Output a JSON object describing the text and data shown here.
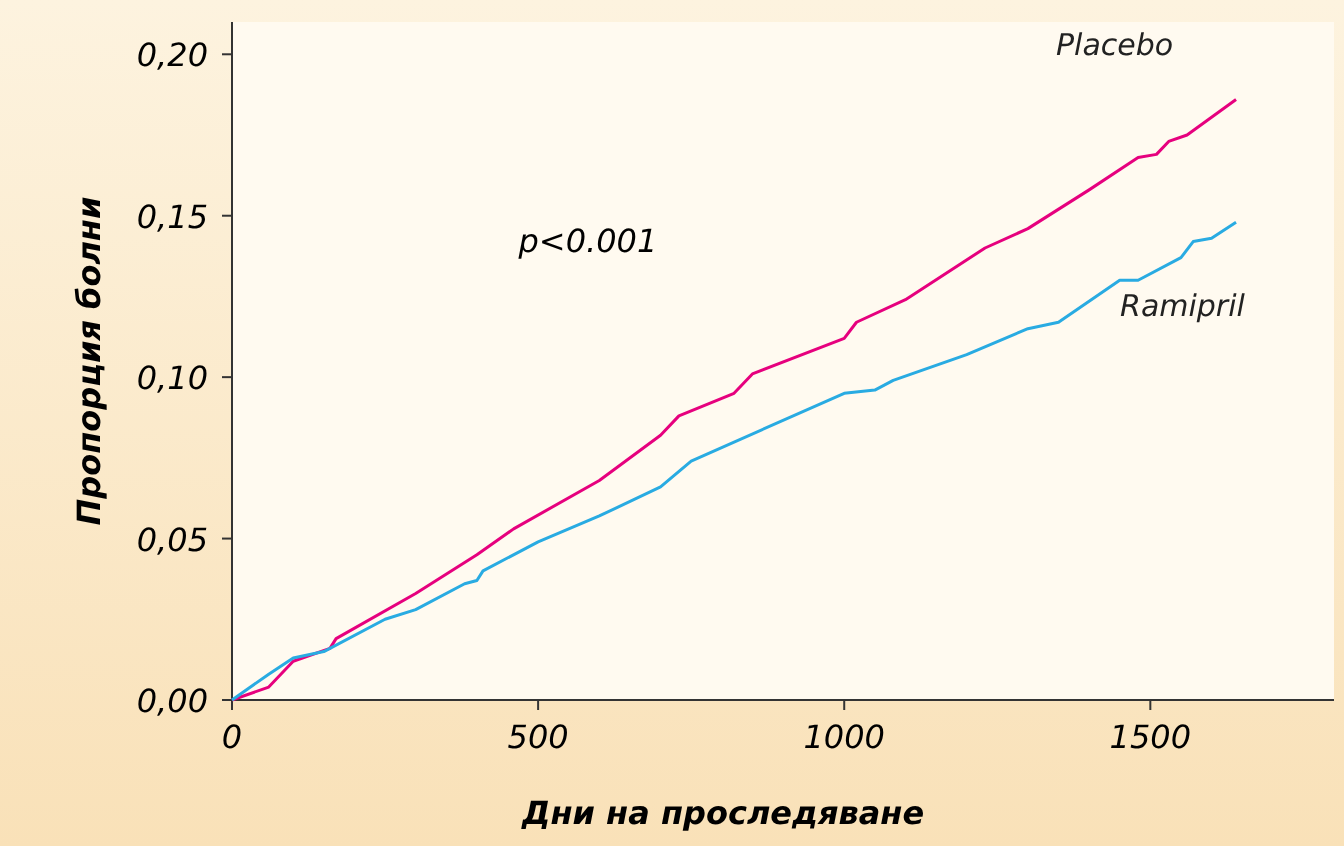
{
  "chart_data": {
    "type": "line",
    "xlabel": "Дни на проследяване",
    "ylabel": "Пропорция болни",
    "xlim": [
      0,
      1800
    ],
    "ylim": [
      0,
      0.21
    ],
    "xticks": [
      0,
      500,
      1000,
      1500
    ],
    "yticks": [
      {
        "value": 0,
        "label": "0,00"
      },
      {
        "value": 0.05,
        "label": "0,05"
      },
      {
        "value": 0.1,
        "label": "0,10"
      },
      {
        "value": 0.15,
        "label": "0,15"
      },
      {
        "value": 0.2,
        "label": "0,20"
      }
    ],
    "grid": false,
    "legend": false,
    "line_style": "solid",
    "marker": "none",
    "annotations": [
      "p<0.001"
    ],
    "series": [
      {
        "name": "Placebo",
        "color": "#e6007e",
        "x": [
          0,
          60,
          100,
          160,
          170,
          300,
          400,
          460,
          600,
          700,
          730,
          820,
          850,
          1000,
          1020,
          1100,
          1230,
          1300,
          1400,
          1480,
          1510,
          1530,
          1560,
          1640
        ],
        "values": [
          0,
          0.004,
          0.012,
          0.016,
          0.019,
          0.033,
          0.045,
          0.053,
          0.068,
          0.082,
          0.088,
          0.095,
          0.101,
          0.112,
          0.117,
          0.124,
          0.14,
          0.146,
          0.158,
          0.168,
          0.169,
          0.173,
          0.175,
          0.186
        ]
      },
      {
        "name": "Ramipril",
        "color": "#29abe2",
        "x": [
          0,
          60,
          100,
          150,
          250,
          300,
          380,
          400,
          410,
          500,
          600,
          700,
          750,
          1000,
          1050,
          1080,
          1200,
          1300,
          1350,
          1450,
          1480,
          1550,
          1570,
          1600,
          1640
        ],
        "values": [
          0,
          0.008,
          0.013,
          0.015,
          0.025,
          0.028,
          0.036,
          0.037,
          0.04,
          0.049,
          0.057,
          0.066,
          0.074,
          0.095,
          0.096,
          0.099,
          0.107,
          0.115,
          0.117,
          0.13,
          0.13,
          0.137,
          0.142,
          0.143,
          0.148
        ]
      }
    ]
  }
}
